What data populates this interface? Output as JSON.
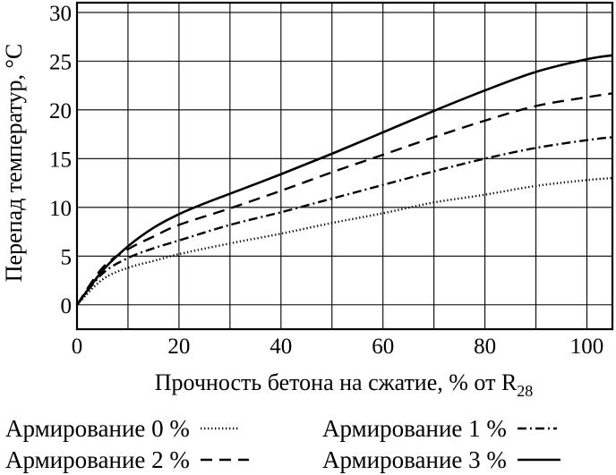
{
  "chart_data": {
    "type": "line",
    "xlabel_main": "Прочность бетона на сжатие, % от R",
    "xlabel_sub": "28",
    "ylabel": "Перепад температур, °С",
    "xlim": [
      0,
      105
    ],
    "ylim": [
      -2.5,
      31
    ],
    "x_ticks": [
      "0",
      "20",
      "40",
      "60",
      "80",
      "100"
    ],
    "y_ticks": [
      "0",
      "5",
      "10",
      "15",
      "20",
      "25",
      "30"
    ],
    "grid": true,
    "legend_position": "bottom",
    "series": [
      {
        "name": "Армирование 0 %",
        "style": "dotted",
        "x": [
          0,
          5,
          10,
          15,
          20,
          30,
          40,
          50,
          60,
          70,
          80,
          90,
          100,
          105
        ],
        "y": [
          0,
          2.6,
          3.8,
          4.5,
          5.2,
          6.3,
          7.3,
          8.4,
          9.4,
          10.5,
          11.3,
          12.2,
          12.8,
          13.0
        ]
      },
      {
        "name": "Армирование 1 %",
        "style": "dash-dot",
        "x": [
          0,
          5,
          10,
          15,
          20,
          30,
          40,
          50,
          60,
          70,
          80,
          90,
          100,
          105
        ],
        "y": [
          0,
          3.2,
          4.8,
          5.8,
          6.6,
          8.2,
          9.5,
          10.9,
          12.3,
          13.7,
          15.0,
          16.1,
          16.9,
          17.2
        ]
      },
      {
        "name": "Армирование 2 %",
        "style": "dashed",
        "x": [
          0,
          5,
          10,
          15,
          20,
          30,
          40,
          50,
          60,
          70,
          80,
          90,
          100,
          105
        ],
        "y": [
          0,
          3.8,
          5.7,
          7.0,
          8.2,
          9.9,
          11.7,
          13.6,
          15.4,
          17.2,
          18.9,
          20.4,
          21.3,
          21.7
        ]
      },
      {
        "name": "Армирование 3 %",
        "style": "solid",
        "x": [
          0,
          5,
          10,
          15,
          20,
          25,
          30,
          40,
          50,
          60,
          70,
          80,
          90,
          100,
          105
        ],
        "y": [
          0,
          3.5,
          6.0,
          7.9,
          9.3,
          10.4,
          11.4,
          13.4,
          15.5,
          17.7,
          19.9,
          22.0,
          23.9,
          25.2,
          25.6
        ]
      }
    ]
  }
}
